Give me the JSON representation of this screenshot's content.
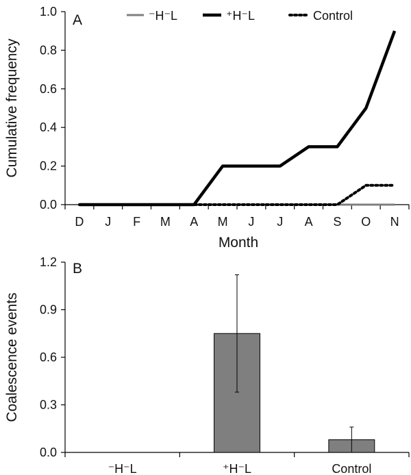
{
  "chart_data": [
    {
      "type": "line",
      "panel_label": "A",
      "xlabel": "Month",
      "ylabel": "Cumulative frequency",
      "categories": [
        "D",
        "J",
        "F",
        "M",
        "A",
        "M",
        "J",
        "J",
        "A",
        "S",
        "O",
        "N"
      ],
      "ylim": [
        0,
        1.0
      ],
      "yticks": [
        "0.0",
        "0.2",
        "0.4",
        "0.6",
        "0.8",
        "1.0"
      ],
      "legend_position": "top",
      "series": [
        {
          "name": "⁻H⁻L",
          "style": "solid-thin",
          "color": "#7f7f7f",
          "values": [
            0,
            0,
            0,
            0,
            0,
            0,
            0,
            0,
            0,
            0,
            0,
            0
          ]
        },
        {
          "name": "⁺H⁻L",
          "style": "solid-thick",
          "color": "#000000",
          "values": [
            0,
            0,
            0,
            0,
            0,
            0.2,
            0.2,
            0.2,
            0.3,
            0.3,
            0.5,
            0.9
          ]
        },
        {
          "name": "Control",
          "style": "dotted",
          "color": "#000000",
          "values": [
            0,
            0,
            0,
            0,
            0,
            0,
            0,
            0,
            0,
            0,
            0.1,
            0.1
          ]
        }
      ]
    },
    {
      "type": "bar",
      "panel_label": "B",
      "xlabel": "",
      "ylabel": "Coalescence events",
      "categories": [
        "⁻H⁻L",
        "⁺H⁻L",
        "Control"
      ],
      "values": [
        0,
        0.75,
        0.08
      ],
      "error": [
        0,
        0.37,
        0.08
      ],
      "ylim": [
        0,
        1.2
      ],
      "yticks": [
        "0.0",
        "0.3",
        "0.6",
        "0.9",
        "1.2"
      ],
      "bar_color": "#7f7f7f",
      "grid": false
    }
  ]
}
